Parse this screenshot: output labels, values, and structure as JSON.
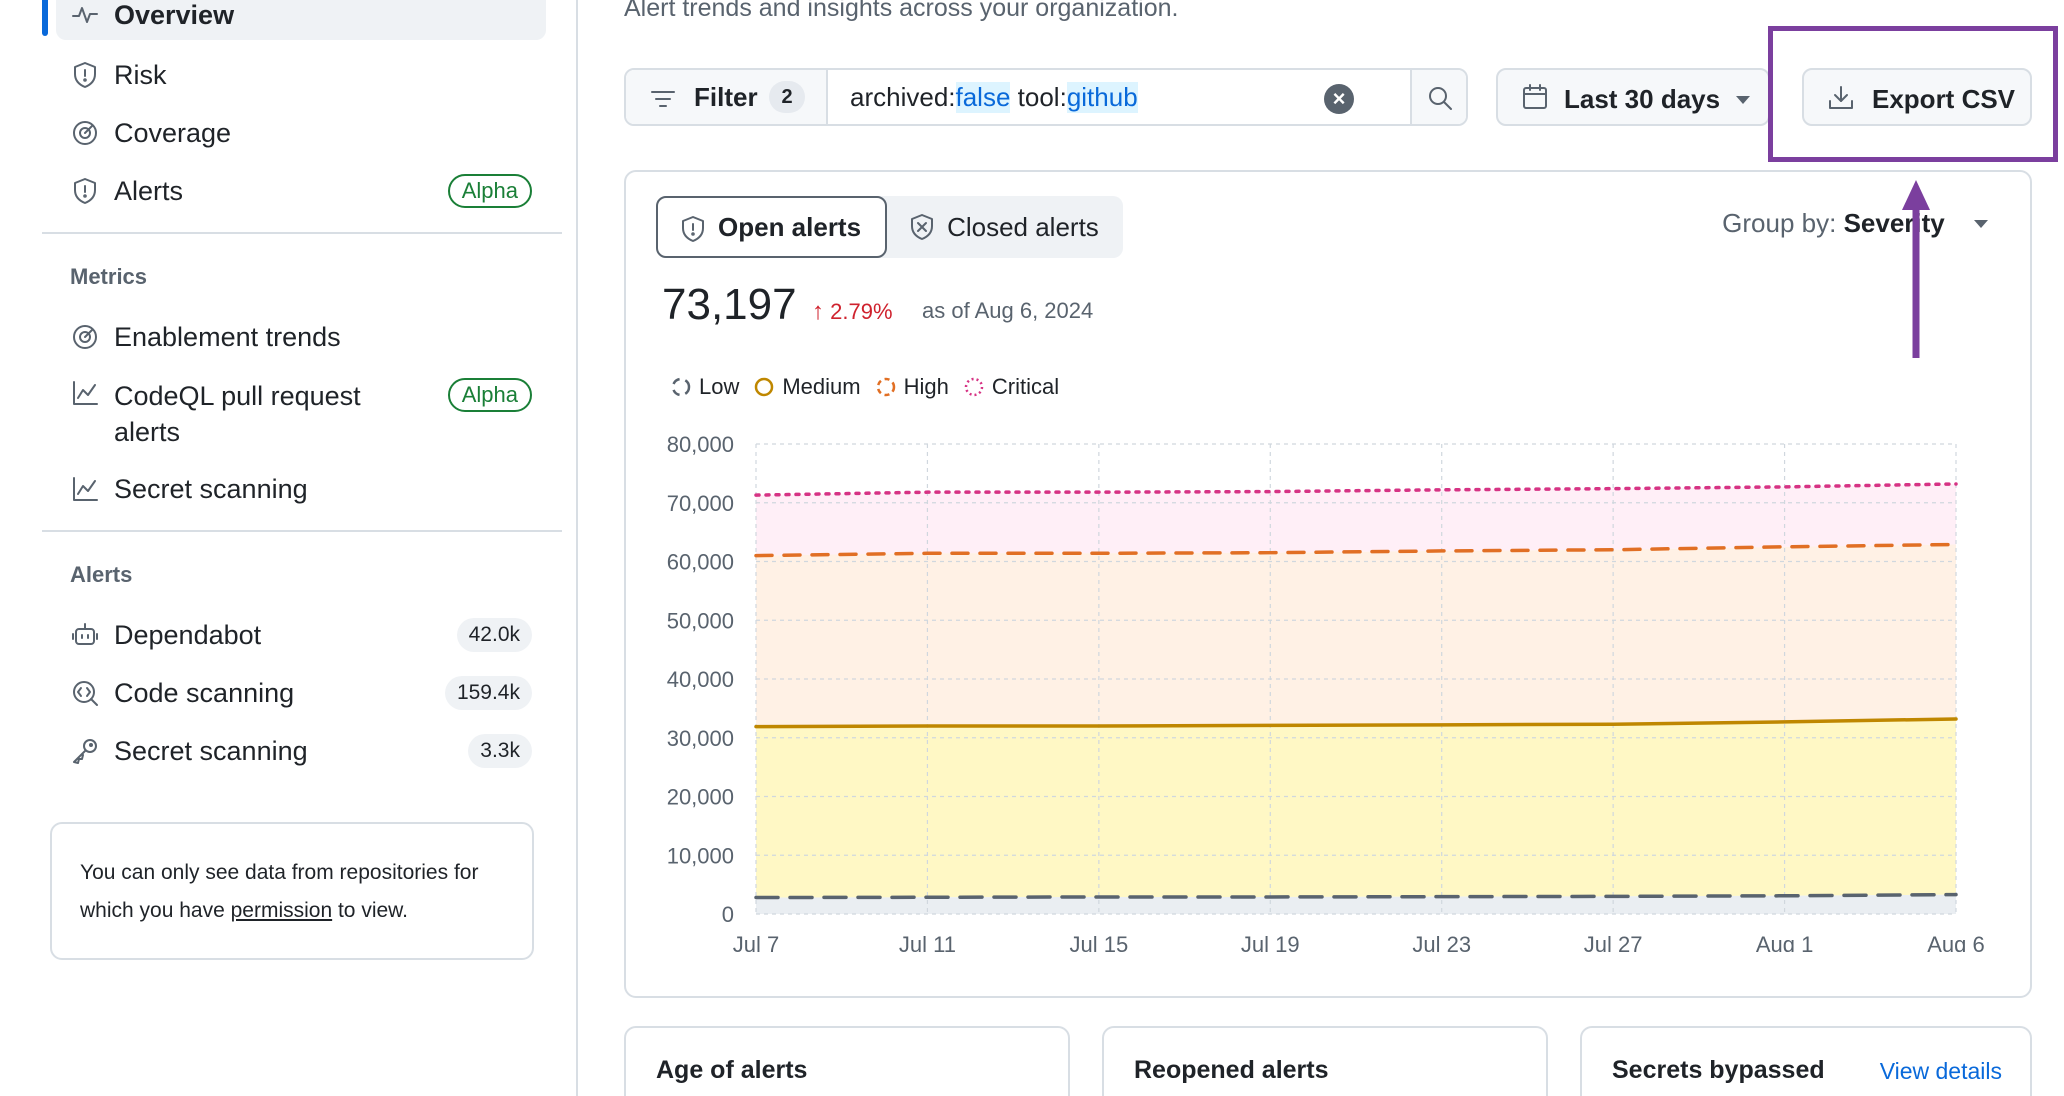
{
  "sidebar": {
    "items": [
      {
        "label": "Overview"
      },
      {
        "label": "Risk"
      },
      {
        "label": "Coverage"
      },
      {
        "label": "Alerts",
        "badge": "Alpha"
      }
    ],
    "metrics_heading": "Metrics",
    "metrics": [
      {
        "label": "Enablement trends"
      },
      {
        "label": "CodeQL pull request",
        "label2": "alerts",
        "badge": "Alpha"
      },
      {
        "label": "Secret scanning"
      }
    ],
    "alerts_heading": "Alerts",
    "alerts": [
      {
        "label": "Dependabot",
        "count": "42.0k"
      },
      {
        "label": "Code scanning",
        "count": "159.4k"
      },
      {
        "label": "Secret scanning",
        "count": "3.3k"
      }
    ],
    "info": {
      "before": "You can only see data from repositories for which you have ",
      "link": "permission",
      "after": " to view."
    }
  },
  "main": {
    "subtitle": "Alert trends and insights across your organization.",
    "filter": {
      "label": "Filter",
      "count": "2",
      "q1_key": "archived:",
      "q1_val": "false",
      "q2_key": "tool:",
      "q2_val": "github"
    },
    "date_label": "Last 30 days",
    "export_label": "Export CSV",
    "tabs": {
      "open": "Open alerts",
      "closed": "Closed alerts"
    },
    "group_by_label": "Group by:",
    "group_by_value": "Severity",
    "total": "73,197",
    "delta": "2.79%",
    "as_of": "as of Aug 6, 2024",
    "bottom_cards": [
      {
        "title": "Age of alerts"
      },
      {
        "title": "Reopened alerts"
      },
      {
        "title": "Secrets bypassed",
        "link": "View details"
      }
    ]
  },
  "chart_data": {
    "type": "area",
    "x": [
      "Jul 7",
      "Jul 11",
      "Jul 15",
      "Jul 19",
      "Jul 23",
      "Jul 27",
      "Aug 1",
      "Aug 6"
    ],
    "ylim": [
      0,
      80000
    ],
    "yticks": [
      "80,000",
      "70,000",
      "60,000",
      "50,000",
      "40,000",
      "30,000",
      "20,000",
      "10,000",
      "0"
    ],
    "grid": true,
    "legend_position": "top-left",
    "series": [
      {
        "name": "Low",
        "color": "#59636e",
        "values": [
          2800,
          2850,
          2900,
          2900,
          2950,
          3000,
          3100,
          3300
        ]
      },
      {
        "name": "Medium",
        "color": "#bf8700",
        "values": [
          31900,
          32000,
          32000,
          32100,
          32200,
          32300,
          32700,
          33200
        ]
      },
      {
        "name": "High",
        "color": "#e16f24",
        "values": [
          61000,
          61400,
          61400,
          61500,
          61800,
          62000,
          62500,
          62900
        ]
      },
      {
        "name": "Critical",
        "color": "#d63384",
        "values": [
          71300,
          71800,
          71800,
          71900,
          72200,
          72400,
          72700,
          73200
        ]
      }
    ]
  }
}
